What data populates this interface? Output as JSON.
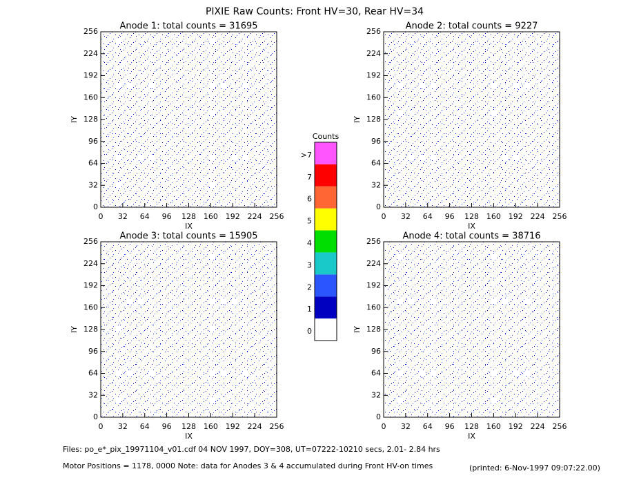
{
  "title": "PIXIE Raw Counts:  Front HV=30, Rear HV=34",
  "chart_data": [
    {
      "type": "heatmap",
      "title": "Anode 1: total counts = 31695",
      "x_label": "IX",
      "y_label": "IY",
      "xlim": [
        0,
        256
      ],
      "ylim": [
        0,
        256
      ],
      "xticks": [
        0,
        32,
        64,
        96,
        128,
        160,
        192,
        224,
        256
      ],
      "yticks": [
        0,
        32,
        64,
        96,
        128,
        160,
        192,
        224,
        256
      ]
    },
    {
      "type": "heatmap",
      "title": "Anode 2: total counts = 9227",
      "x_label": "IX",
      "y_label": "IY",
      "xlim": [
        0,
        256
      ],
      "ylim": [
        0,
        256
      ],
      "xticks": [
        0,
        32,
        64,
        96,
        128,
        160,
        192,
        224,
        256
      ],
      "yticks": [
        0,
        32,
        64,
        96,
        128,
        160,
        192,
        224,
        256
      ]
    },
    {
      "type": "heatmap",
      "title": "Anode 3: total counts = 15905",
      "x_label": "IX",
      "y_label": "IY",
      "xlim": [
        0,
        256
      ],
      "ylim": [
        0,
        256
      ],
      "xticks": [
        0,
        32,
        64,
        96,
        128,
        160,
        192,
        224,
        256
      ],
      "yticks": [
        0,
        32,
        64,
        96,
        128,
        160,
        192,
        224,
        256
      ]
    },
    {
      "type": "heatmap",
      "title": "Anode 4: total counts = 38716",
      "x_label": "IX",
      "y_label": "IY",
      "xlim": [
        0,
        256
      ],
      "ylim": [
        0,
        256
      ],
      "xticks": [
        0,
        32,
        64,
        96,
        128,
        160,
        192,
        224,
        256
      ],
      "yticks": [
        0,
        32,
        64,
        96,
        128,
        160,
        192,
        224,
        256
      ]
    }
  ],
  "colorbar": {
    "title": "Counts",
    "labels": [
      0,
      1,
      2,
      3,
      4,
      5,
      6,
      7,
      ">7"
    ],
    "colors": [
      "#ffffff",
      "#0000c0",
      "#2b55ff",
      "#19c8c8",
      "#00dd00",
      "#ffff00",
      "#ff6633",
      "#ff0000",
      "#ff55ff"
    ]
  },
  "footer": {
    "files": "Files: po_e*_pix_19971104_v01.cdf    04 NOV 1997, DOY=308, UT=07222-10210 secs,  2.01- 2.84 hrs",
    "motor": "Motor Positions = 1178, 0000    Note: data for Anodes 3 & 4 accumulated during Front HV-on times",
    "printed": "(printed:  6-Nov-1997 09:07:22.00)"
  }
}
